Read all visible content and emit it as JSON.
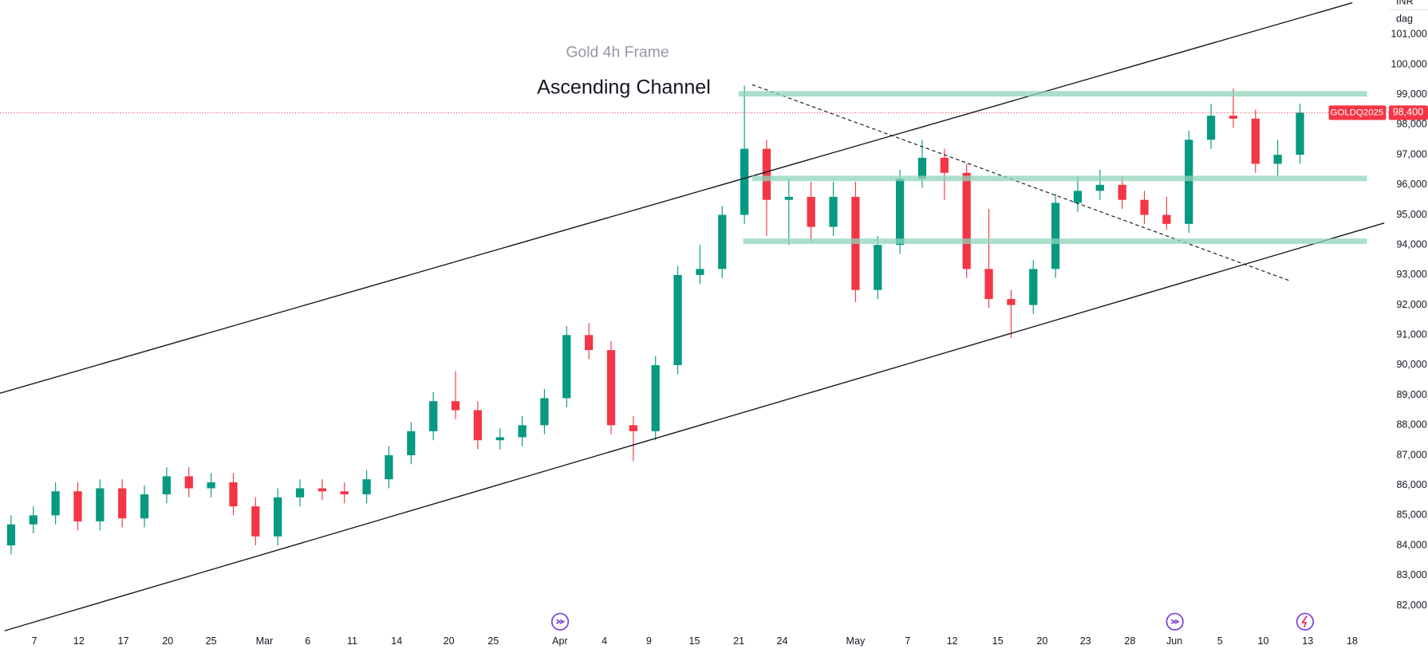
{
  "chart_data": {
    "type": "candlestick",
    "title": "Gold 4h Frame",
    "annotation": "Ascending Channel",
    "symbol": "GOLDQ2025",
    "currency": "INR",
    "unit": "dag",
    "last_price": 98400,
    "last_price_label": "98,400",
    "up_color": "#089981",
    "down_color": "#f23645",
    "x": [
      1,
      3,
      5,
      7,
      9,
      11,
      13,
      15,
      17,
      19,
      21,
      23,
      25,
      27,
      29,
      31,
      33,
      35,
      37,
      39,
      41,
      43,
      45,
      47,
      49,
      51,
      53,
      55,
      57,
      59,
      61,
      63,
      65,
      67,
      69,
      71,
      73,
      75,
      77,
      79,
      81,
      83,
      85,
      87,
      89,
      91,
      93,
      95,
      97,
      99,
      101,
      103,
      105,
      107,
      109,
      111,
      113,
      115,
      117
    ],
    "open": [
      84000,
      84700,
      85000,
      85800,
      84800,
      85900,
      84900,
      85700,
      86300,
      85900,
      86100,
      85300,
      84300,
      85600,
      85900,
      85800,
      85700,
      86200,
      87000,
      87800,
      88800,
      88500,
      87500,
      87600,
      88000,
      88900,
      91000,
      90500,
      88000,
      87800,
      90000,
      93000,
      93200,
      95000,
      97200,
      95500,
      95600,
      94600,
      95600,
      92500,
      94000,
      96200,
      96900,
      96400,
      93200,
      92200,
      92000,
      93200,
      95400,
      95800,
      96000,
      95500,
      95000,
      94700,
      97500,
      98300,
      98200,
      96700,
      97000
    ],
    "high": [
      85000,
      85300,
      86100,
      86100,
      86200,
      86200,
      86000,
      86600,
      86600,
      86400,
      86400,
      85600,
      85900,
      86200,
      86200,
      86100,
      86500,
      87300,
      88100,
      89100,
      89800,
      88800,
      87900,
      88300,
      89200,
      91300,
      91400,
      90800,
      88300,
      90300,
      93300,
      94000,
      95300,
      99300,
      97500,
      96200,
      96100,
      96100,
      96100,
      94300,
      96500,
      97500,
      97200,
      96700,
      95200,
      92500,
      93500,
      95700,
      96300,
      96500,
      96300,
      95800,
      95600,
      97800,
      98700,
      99200,
      98500,
      97500,
      98700
    ],
    "low": [
      83700,
      84400,
      84700,
      84500,
      84500,
      84600,
      84600,
      85400,
      85600,
      85600,
      85000,
      84000,
      84000,
      85300,
      85500,
      85400,
      85400,
      85900,
      86700,
      87500,
      88200,
      87200,
      87200,
      87300,
      87700,
      88600,
      90200,
      87700,
      86800,
      87500,
      89700,
      92700,
      92900,
      94700,
      94300,
      94000,
      94100,
      94300,
      92100,
      92200,
      93700,
      95900,
      95500,
      92900,
      91900,
      90900,
      91700,
      92900,
      95100,
      95500,
      95200,
      94700,
      94500,
      94400,
      97200,
      97900,
      96400,
      96300,
      96700
    ],
    "close": [
      84700,
      85000,
      85800,
      84800,
      85900,
      84900,
      85700,
      86300,
      85900,
      86100,
      85300,
      84300,
      85600,
      85900,
      85800,
      85700,
      86200,
      87000,
      87800,
      88800,
      88500,
      87500,
      87600,
      88000,
      88900,
      91000,
      90500,
      88000,
      87800,
      90000,
      93000,
      93200,
      95000,
      97200,
      95500,
      95600,
      94600,
      95600,
      92500,
      94000,
      96200,
      96900,
      96400,
      93200,
      92200,
      92000,
      93200,
      95400,
      95800,
      96000,
      95500,
      95000,
      94700,
      97500,
      98300,
      98200,
      96700,
      97000,
      98400
    ],
    "xlim": [
      0,
      125
    ],
    "xticks": [
      {
        "value": 3.1,
        "label": "7"
      },
      {
        "value": 7.1,
        "label": "12"
      },
      {
        "value": 11.1,
        "label": "17"
      },
      {
        "value": 15.1,
        "label": "20"
      },
      {
        "value": 19,
        "label": "25"
      },
      {
        "value": 23.8,
        "label": "Mar"
      },
      {
        "value": 27.7,
        "label": "6"
      },
      {
        "value": 31.7,
        "label": "11"
      },
      {
        "value": 35.7,
        "label": "14"
      },
      {
        "value": 40.4,
        "label": "20"
      },
      {
        "value": 44.4,
        "label": "25"
      },
      {
        "value": 50.4,
        "label": "Apr"
      },
      {
        "value": 54.4,
        "label": "4"
      },
      {
        "value": 58.4,
        "label": "9"
      },
      {
        "value": 62.5,
        "label": "15"
      },
      {
        "value": 66.5,
        "label": "21"
      },
      {
        "value": 70.4,
        "label": "24"
      },
      {
        "value": 77,
        "label": "May"
      },
      {
        "value": 81.7,
        "label": "7"
      },
      {
        "value": 85.7,
        "label": "12"
      },
      {
        "value": 89.8,
        "label": "15"
      },
      {
        "value": 93.8,
        "label": "20"
      },
      {
        "value": 97.7,
        "label": "23"
      },
      {
        "value": 101.7,
        "label": "28"
      },
      {
        "value": 105.7,
        "label": "Jun"
      },
      {
        "value": 109.8,
        "label": "5"
      },
      {
        "value": 113.7,
        "label": "10"
      },
      {
        "value": 117.7,
        "label": "13"
      },
      {
        "value": 121.7,
        "label": "18"
      }
    ],
    "ylim": [
      81250,
      102150
    ],
    "yticks": [
      {
        "value": 82000,
        "label": "82,000"
      },
      {
        "value": 83000,
        "label": "83,000"
      },
      {
        "value": 84000,
        "label": "84,000"
      },
      {
        "value": 85000,
        "label": "85,000"
      },
      {
        "value": 86000,
        "label": "86,000"
      },
      {
        "value": 87000,
        "label": "87,000"
      },
      {
        "value": 88000,
        "label": "88,000"
      },
      {
        "value": 89000,
        "label": "89,000"
      },
      {
        "value": 90000,
        "label": "90,000"
      },
      {
        "value": 91000,
        "label": "91,000"
      },
      {
        "value": 92000,
        "label": "92,000"
      },
      {
        "value": 93000,
        "label": "93,000"
      },
      {
        "value": 94000,
        "label": "94,000"
      },
      {
        "value": 95000,
        "label": "95,000"
      },
      {
        "value": 96000,
        "label": "96,000"
      },
      {
        "value": 97000,
        "label": "97,000"
      },
      {
        "value": 98000,
        "label": "98,000"
      },
      {
        "value": 99000,
        "label": "99,000"
      },
      {
        "value": 100000,
        "label": "100,000"
      },
      {
        "value": 101000,
        "label": "101,000"
      }
    ]
  }
}
